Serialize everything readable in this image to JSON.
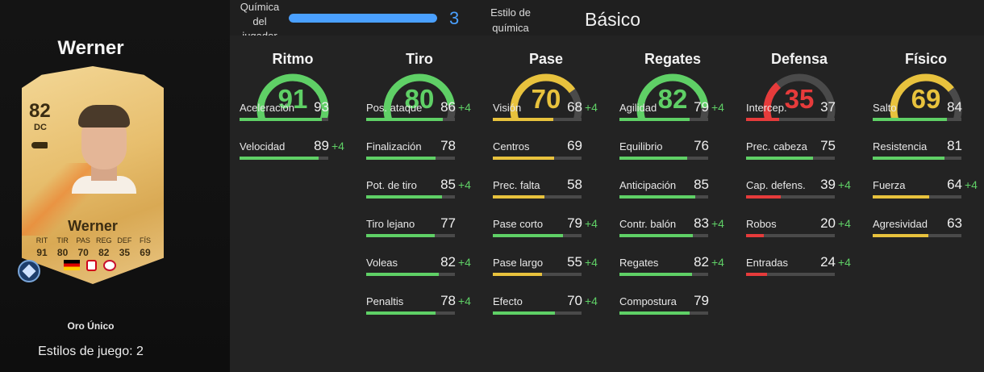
{
  "player": {
    "name": "Werner",
    "card_name": "Werner",
    "rating": "82",
    "position": "DC",
    "card_stats": [
      {
        "label": "RIT",
        "value": "91"
      },
      {
        "label": "TIR",
        "value": "80"
      },
      {
        "label": "PAS",
        "value": "70"
      },
      {
        "label": "REG",
        "value": "82"
      },
      {
        "label": "DEF",
        "value": "35"
      },
      {
        "label": "FÍS",
        "value": "69"
      }
    ],
    "edition": "Oro Único",
    "playstyles": "Estilos de juego: 2"
  },
  "chemistry": {
    "label_lines": [
      "Química",
      "del",
      "jugador"
    ],
    "value": "3",
    "max": 3,
    "style_label_lines": [
      "Estilo de",
      "química"
    ],
    "style_value": "Básico"
  },
  "colors": {
    "green": "#5fd066",
    "yellow": "#e8c23d",
    "red": "#e63b3b",
    "blue": "#4aa0ff",
    "track": "#4a4a4a"
  },
  "categories": [
    {
      "title": "Ritmo",
      "value": "91",
      "tier": "green",
      "stats": [
        {
          "label": "Aceleración",
          "value": "93",
          "boost": ""
        },
        {
          "label": "Velocidad",
          "value": "89",
          "boost": "+4"
        }
      ]
    },
    {
      "title": "Tiro",
      "value": "80",
      "tier": "green",
      "stats": [
        {
          "label": "Pos. ataque",
          "value": "86",
          "boost": "+4"
        },
        {
          "label": "Finalización",
          "value": "78",
          "boost": ""
        },
        {
          "label": "Pot. de tiro",
          "value": "85",
          "boost": "+4"
        },
        {
          "label": "Tiro lejano",
          "value": "77",
          "boost": ""
        },
        {
          "label": "Voleas",
          "value": "82",
          "boost": "+4"
        },
        {
          "label": "Penaltis",
          "value": "78",
          "boost": "+4"
        }
      ]
    },
    {
      "title": "Pase",
      "value": "70",
      "tier": "yellow",
      "stats": [
        {
          "label": "Visión",
          "value": "68",
          "boost": "+4"
        },
        {
          "label": "Centros",
          "value": "69",
          "boost": ""
        },
        {
          "label": "Prec. falta",
          "value": "58",
          "boost": ""
        },
        {
          "label": "Pase corto",
          "value": "79",
          "boost": "+4"
        },
        {
          "label": "Pase largo",
          "value": "55",
          "boost": "+4"
        },
        {
          "label": "Efecto",
          "value": "70",
          "boost": "+4"
        }
      ]
    },
    {
      "title": "Regates",
      "value": "82",
      "tier": "green",
      "stats": [
        {
          "label": "Agilidad",
          "value": "79",
          "boost": "+4"
        },
        {
          "label": "Equilibrio",
          "value": "76",
          "boost": ""
        },
        {
          "label": "Anticipación",
          "value": "85",
          "boost": ""
        },
        {
          "label": "Contr. balón",
          "value": "83",
          "boost": "+4"
        },
        {
          "label": "Regates",
          "value": "82",
          "boost": "+4"
        },
        {
          "label": "Compostura",
          "value": "79",
          "boost": ""
        }
      ]
    },
    {
      "title": "Defensa",
      "value": "35",
      "tier": "red",
      "stats": [
        {
          "label": "Intercep.",
          "value": "37",
          "boost": ""
        },
        {
          "label": "Prec. cabeza",
          "value": "75",
          "boost": ""
        },
        {
          "label": "Cap. defens.",
          "value": "39",
          "boost": "+4"
        },
        {
          "label": "Robos",
          "value": "20",
          "boost": "+4"
        },
        {
          "label": "Entradas",
          "value": "24",
          "boost": "+4"
        }
      ]
    },
    {
      "title": "Físico",
      "value": "69",
      "tier": "yellow",
      "stats": [
        {
          "label": "Salto",
          "value": "84",
          "boost": ""
        },
        {
          "label": "Resistencia",
          "value": "81",
          "boost": ""
        },
        {
          "label": "Fuerza",
          "value": "64",
          "boost": "+4"
        },
        {
          "label": "Agresividad",
          "value": "63",
          "boost": ""
        }
      ]
    }
  ]
}
